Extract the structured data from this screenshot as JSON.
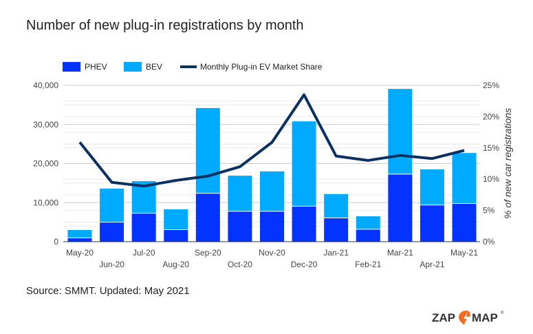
{
  "title": "Number of new plug-in registrations by month",
  "source": "Source: SMMT. Updated: May 2021",
  "logo_text": "ZAP MAP",
  "chart_data": {
    "type": "bar",
    "stacked": true,
    "categories": [
      "May-20",
      "Jun-20",
      "Jul-20",
      "Aug-20",
      "Sep-20",
      "Oct-20",
      "Nov-20",
      "Dec-20",
      "Jan-21",
      "Feb-21",
      "Mar-21",
      "Apr-21",
      "May-21"
    ],
    "series": [
      {
        "name": "PHEV",
        "type": "bar",
        "color": "#0433ff",
        "values": [
          900,
          4900,
          7200,
          3000,
          12300,
          7700,
          7700,
          9000,
          6000,
          3100,
          17200,
          9300,
          9700
        ]
      },
      {
        "name": "BEV",
        "type": "bar",
        "color": "#00aaff",
        "values": [
          2100,
          8700,
          8300,
          5300,
          21900,
          9200,
          10300,
          21800,
          6200,
          3400,
          21900,
          9200,
          13000
        ]
      },
      {
        "name": "Monthly Plug-in EV Market Share",
        "type": "line",
        "axis": "right",
        "color": "#0b3160",
        "values": [
          15.9,
          9.5,
          8.9,
          9.8,
          10.5,
          12.0,
          15.9,
          23.5,
          13.7,
          13.0,
          13.8,
          13.3,
          14.6
        ]
      }
    ],
    "ylim": [
      0,
      40000
    ],
    "yticks": [
      "0",
      "10,000",
      "20,000",
      "30,000",
      "40,000"
    ],
    "y2lim": [
      0,
      25
    ],
    "y2ticks": [
      "0%",
      "5%",
      "10%",
      "15%",
      "20%",
      "25%"
    ],
    "y2label": "% of new car registrations",
    "legend": "top-left",
    "grid": true
  }
}
